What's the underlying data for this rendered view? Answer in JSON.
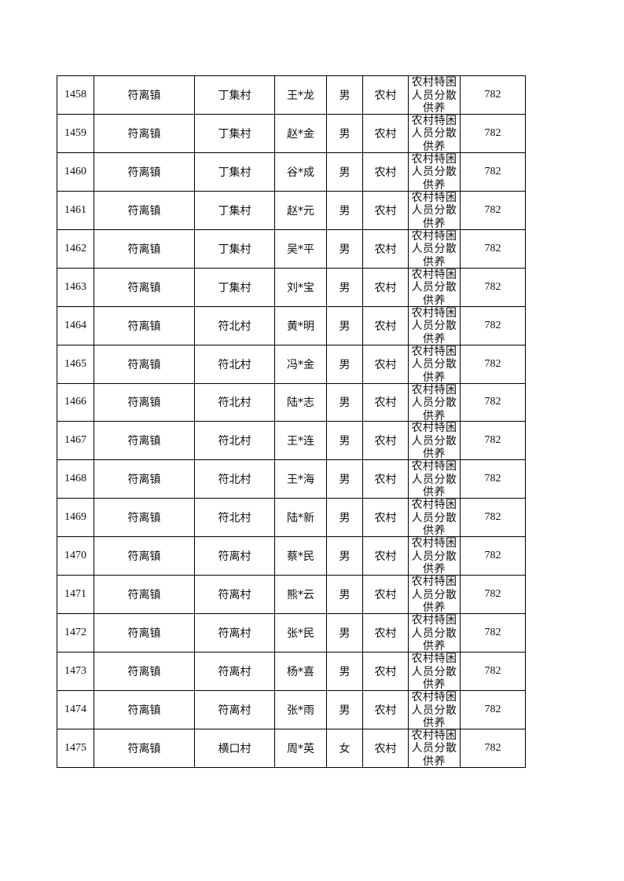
{
  "table": {
    "rows": [
      {
        "no": "1458",
        "town": "符离镇",
        "village": "丁集村",
        "name": "王*龙",
        "gender": "男",
        "household": "农村",
        "category": "农村特困人员分散供养",
        "amount": "782"
      },
      {
        "no": "1459",
        "town": "符离镇",
        "village": "丁集村",
        "name": "赵*金",
        "gender": "男",
        "household": "农村",
        "category": "农村特困人员分散供养",
        "amount": "782"
      },
      {
        "no": "1460",
        "town": "符离镇",
        "village": "丁集村",
        "name": "谷*成",
        "gender": "男",
        "household": "农村",
        "category": "农村特困人员分散供养",
        "amount": "782"
      },
      {
        "no": "1461",
        "town": "符离镇",
        "village": "丁集村",
        "name": "赵*元",
        "gender": "男",
        "household": "农村",
        "category": "农村特困人员分散供养",
        "amount": "782"
      },
      {
        "no": "1462",
        "town": "符离镇",
        "village": "丁集村",
        "name": "吴*平",
        "gender": "男",
        "household": "农村",
        "category": "农村特困人员分散供养",
        "amount": "782"
      },
      {
        "no": "1463",
        "town": "符离镇",
        "village": "丁集村",
        "name": "刘*宝",
        "gender": "男",
        "household": "农村",
        "category": "农村特困人员分散供养",
        "amount": "782"
      },
      {
        "no": "1464",
        "town": "符离镇",
        "village": "符北村",
        "name": "黄*明",
        "gender": "男",
        "household": "农村",
        "category": "农村特困人员分散供养",
        "amount": "782"
      },
      {
        "no": "1465",
        "town": "符离镇",
        "village": "符北村",
        "name": "冯*金",
        "gender": "男",
        "household": "农村",
        "category": "农村特困人员分散供养",
        "amount": "782"
      },
      {
        "no": "1466",
        "town": "符离镇",
        "village": "符北村",
        "name": "陆*志",
        "gender": "男",
        "household": "农村",
        "category": "农村特困人员分散供养",
        "amount": "782"
      },
      {
        "no": "1467",
        "town": "符离镇",
        "village": "符北村",
        "name": "王*连",
        "gender": "男",
        "household": "农村",
        "category": "农村特困人员分散供养",
        "amount": "782"
      },
      {
        "no": "1468",
        "town": "符离镇",
        "village": "符北村",
        "name": "王*海",
        "gender": "男",
        "household": "农村",
        "category": "农村特困人员分散供养",
        "amount": "782"
      },
      {
        "no": "1469",
        "town": "符离镇",
        "village": "符北村",
        "name": "陆*新",
        "gender": "男",
        "household": "农村",
        "category": "农村特困人员分散供养",
        "amount": "782"
      },
      {
        "no": "1470",
        "town": "符离镇",
        "village": "符离村",
        "name": "蔡*民",
        "gender": "男",
        "household": "农村",
        "category": "农村特困人员分散供养",
        "amount": "782"
      },
      {
        "no": "1471",
        "town": "符离镇",
        "village": "符离村",
        "name": "熊*云",
        "gender": "男",
        "household": "农村",
        "category": "农村特困人员分散供养",
        "amount": "782"
      },
      {
        "no": "1472",
        "town": "符离镇",
        "village": "符离村",
        "name": "张*民",
        "gender": "男",
        "household": "农村",
        "category": "农村特困人员分散供养",
        "amount": "782"
      },
      {
        "no": "1473",
        "town": "符离镇",
        "village": "符离村",
        "name": "杨*喜",
        "gender": "男",
        "household": "农村",
        "category": "农村特困人员分散供养",
        "amount": "782"
      },
      {
        "no": "1474",
        "town": "符离镇",
        "village": "符离村",
        "name": "张*雨",
        "gender": "男",
        "household": "农村",
        "category": "农村特困人员分散供养",
        "amount": "782"
      },
      {
        "no": "1475",
        "town": "符离镇",
        "village": "横口村",
        "name": "周*英",
        "gender": "女",
        "household": "农村",
        "category": "农村特困人员分散供养",
        "amount": "782"
      }
    ]
  }
}
